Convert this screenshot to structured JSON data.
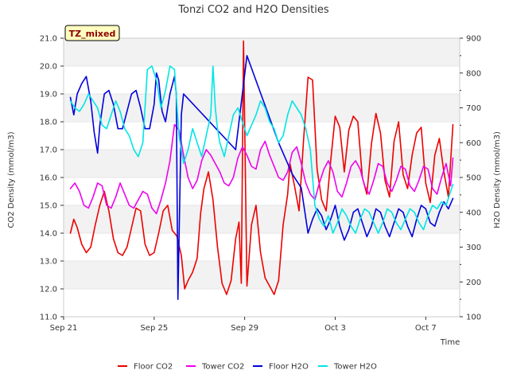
{
  "chart_data": {
    "type": "line",
    "title": "Tonzi CO2 and H2O Densities",
    "site_badge": "TZ_mixed",
    "xlabel": "Time",
    "ylabel_left": "CO2 Density (mmol/m3)",
    "ylabel_right": "H2O Density (mmol/m3)",
    "x_ticks": [
      {
        "day": 0,
        "label": "Sep 21"
      },
      {
        "day": 4,
        "label": "Sep 25"
      },
      {
        "day": 8,
        "label": "Sep 29"
      },
      {
        "day": 12,
        "label": "Oct 3"
      },
      {
        "day": 16,
        "label": "Oct 7"
      }
    ],
    "xlim_days": [
      0,
      17.5
    ],
    "ylim_left": [
      11.0,
      21.0
    ],
    "ylim_right": [
      100,
      900
    ],
    "yticks_left": [
      "11.0",
      "12.0",
      "13.0",
      "14.0",
      "15.0",
      "16.0",
      "17.0",
      "18.0",
      "19.0",
      "20.0",
      "21.0"
    ],
    "yticks_right": [
      "100",
      "200",
      "300",
      "400",
      "500",
      "600",
      "700",
      "800",
      "900"
    ],
    "grid": "horizontal bands",
    "legend_position": "bottom",
    "series": [
      {
        "name": "Floor CO2",
        "color": "#ee0000",
        "axis": "left",
        "x": [
          0.3,
          0.45,
          0.6,
          0.8,
          1.0,
          1.2,
          1.4,
          1.6,
          1.8,
          2.0,
          2.2,
          2.4,
          2.6,
          2.8,
          3.0,
          3.2,
          3.4,
          3.6,
          3.8,
          4.0,
          4.2,
          4.4,
          4.6,
          4.8,
          5.0,
          5.2,
          5.35,
          5.5,
          5.7,
          5.9,
          6.05,
          6.2,
          6.4,
          6.6,
          6.8,
          7.0,
          7.2,
          7.4,
          7.6,
          7.75,
          7.85,
          7.95,
          8.1,
          8.3,
          8.5,
          8.7,
          8.9,
          9.1,
          9.3,
          9.5,
          9.7,
          9.9,
          10.0,
          10.2,
          10.4,
          10.6,
          10.8,
          11.0,
          11.2,
          11.4,
          11.6,
          11.8,
          12.0,
          12.2,
          12.4,
          12.6,
          12.8,
          13.0,
          13.2,
          13.4,
          13.6,
          13.8,
          14.0,
          14.2,
          14.4,
          14.6,
          14.8,
          15.0,
          15.2,
          15.4,
          15.6,
          15.8,
          16.0,
          16.2,
          16.4,
          16.6,
          16.8,
          17.0,
          17.2
        ],
        "y": [
          14.0,
          14.5,
          14.2,
          13.6,
          13.3,
          13.5,
          14.3,
          15.0,
          15.5,
          14.8,
          13.8,
          13.3,
          13.2,
          13.5,
          14.2,
          14.9,
          14.8,
          13.6,
          13.2,
          13.3,
          14.0,
          14.8,
          15.0,
          14.1,
          13.9,
          13.2,
          12.0,
          12.3,
          12.6,
          13.1,
          14.7,
          15.6,
          16.2,
          15.2,
          13.5,
          12.2,
          11.8,
          12.3,
          13.8,
          14.4,
          12.2,
          20.9,
          12.1,
          14.3,
          15.0,
          13.3,
          12.4,
          12.1,
          11.8,
          12.3,
          14.3,
          15.4,
          16.5,
          15.7,
          14.8,
          17.3,
          19.6,
          19.5,
          16.3,
          15.2,
          14.8,
          16.6,
          18.2,
          17.8,
          16.2,
          17.7,
          18.2,
          18.0,
          16.0,
          15.4,
          17.2,
          18.3,
          17.6,
          15.9,
          15.3,
          17.3,
          18.0,
          16.1,
          15.6,
          16.8,
          17.6,
          17.8,
          15.8,
          15.1,
          16.8,
          17.4,
          16.2,
          15.3,
          17.9
        ]
      },
      {
        "name": "Tower CO2",
        "color": "#ee00ee",
        "axis": "left",
        "x": [
          0.3,
          0.5,
          0.7,
          0.9,
          1.1,
          1.3,
          1.5,
          1.7,
          1.9,
          2.1,
          2.3,
          2.5,
          2.7,
          2.9,
          3.1,
          3.3,
          3.5,
          3.7,
          3.9,
          4.1,
          4.3,
          4.5,
          4.7,
          4.9,
          5.1,
          5.3,
          5.5,
          5.7,
          5.9,
          6.1,
          6.3,
          6.5,
          6.7,
          6.9,
          7.1,
          7.3,
          7.5,
          7.7,
          7.9,
          8.1,
          8.3,
          8.5,
          8.7,
          8.9,
          9.1,
          9.3,
          9.5,
          9.7,
          9.9,
          10.1,
          10.3,
          10.5,
          10.7,
          10.9,
          11.1,
          11.3,
          11.5,
          11.7,
          11.9,
          12.1,
          12.3,
          12.5,
          12.7,
          12.9,
          13.1,
          13.3,
          13.5,
          13.7,
          13.9,
          14.1,
          14.3,
          14.5,
          14.7,
          14.9,
          15.1,
          15.3,
          15.5,
          15.7,
          15.9,
          16.1,
          16.3,
          16.5,
          16.7,
          16.9,
          17.1,
          17.2
        ],
        "y": [
          15.6,
          15.8,
          15.5,
          15.0,
          14.9,
          15.3,
          15.8,
          15.7,
          15.0,
          14.9,
          15.3,
          15.8,
          15.4,
          15.0,
          14.9,
          15.2,
          15.5,
          15.4,
          14.9,
          14.7,
          15.2,
          15.8,
          16.6,
          17.9,
          17.7,
          16.8,
          16.0,
          15.6,
          15.9,
          16.6,
          17.0,
          16.8,
          16.5,
          16.2,
          15.8,
          15.7,
          16.0,
          16.7,
          17.1,
          16.8,
          16.4,
          16.3,
          17.0,
          17.3,
          16.8,
          16.4,
          16.0,
          15.9,
          16.2,
          16.9,
          17.1,
          16.5,
          15.8,
          15.4,
          15.2,
          15.8,
          16.3,
          16.6,
          16.2,
          15.5,
          15.3,
          15.8,
          16.4,
          16.6,
          16.3,
          15.7,
          15.4,
          15.9,
          16.5,
          16.4,
          15.8,
          15.5,
          15.9,
          16.4,
          16.3,
          15.7,
          15.5,
          15.9,
          16.4,
          16.3,
          15.6,
          15.4,
          16.0,
          16.5,
          15.7,
          16.7
        ]
      },
      {
        "name": "Floor H2O",
        "color": "#0000dd",
        "axis": "right",
        "x": [
          0.3,
          0.45,
          0.6,
          0.8,
          1.0,
          1.2,
          1.35,
          1.5,
          1.6,
          1.8,
          2.0,
          2.2,
          2.4,
          2.6,
          2.8,
          3.0,
          3.2,
          3.4,
          3.6,
          3.8,
          4.0,
          4.1,
          4.2,
          4.35,
          4.5,
          4.7,
          4.9,
          4.98,
          5.05,
          5.2,
          5.3,
          7.6,
          8.1,
          9.5,
          10.1,
          10.5,
          10.8,
          11.0,
          11.2,
          11.4,
          11.6,
          11.8,
          12.0,
          12.2,
          12.4,
          12.6,
          12.8,
          13.0,
          13.2,
          13.4,
          13.6,
          13.8,
          14.0,
          14.2,
          14.4,
          14.6,
          14.8,
          15.0,
          15.2,
          15.4,
          15.6,
          15.8,
          16.0,
          16.2,
          16.4,
          16.6,
          16.8,
          17.0,
          17.2
        ],
        "y": [
          730,
          680,
          740,
          770,
          790,
          720,
          630,
          570,
          650,
          740,
          750,
          710,
          640,
          640,
          690,
          740,
          750,
          700,
          640,
          640,
          710,
          800,
          780,
          690,
          660,
          740,
          790,
          740,
          150,
          680,
          740,
          580,
          850,
          600,
          510,
          470,
          340,
          380,
          410,
          390,
          350,
          380,
          420,
          360,
          320,
          350,
          400,
          410,
          370,
          330,
          360,
          410,
          400,
          360,
          330,
          370,
          410,
          400,
          360,
          330,
          380,
          420,
          410,
          370,
          360,
          400,
          430,
          410,
          440
        ]
      },
      {
        "name": "Tower H2O",
        "color": "#00e5e5",
        "axis": "right",
        "x": [
          0.3,
          0.5,
          0.7,
          0.9,
          1.1,
          1.3,
          1.5,
          1.7,
          1.9,
          2.1,
          2.3,
          2.5,
          2.7,
          2.9,
          3.1,
          3.3,
          3.5,
          3.7,
          3.9,
          4.1,
          4.3,
          4.5,
          4.7,
          4.9,
          5.1,
          5.3,
          5.5,
          5.7,
          5.9,
          6.1,
          6.3,
          6.5,
          6.6,
          6.7,
          6.8,
          6.9,
          7.1,
          7.3,
          7.5,
          7.7,
          7.9,
          8.1,
          8.3,
          8.5,
          8.7,
          8.9,
          9.1,
          9.3,
          9.5,
          9.7,
          9.9,
          10.1,
          10.3,
          10.5,
          10.7,
          10.9,
          11.1,
          11.3,
          11.5,
          11.7,
          11.9,
          12.1,
          12.3,
          12.5,
          12.7,
          12.9,
          13.1,
          13.3,
          13.5,
          13.7,
          13.9,
          14.1,
          14.3,
          14.5,
          14.7,
          14.9,
          15.1,
          15.3,
          15.5,
          15.7,
          15.9,
          16.1,
          16.3,
          16.5,
          16.7,
          16.9,
          17.1,
          17.2
        ],
        "y": [
          720,
          700,
          690,
          710,
          740,
          720,
          700,
          650,
          640,
          680,
          720,
          690,
          640,
          620,
          580,
          560,
          600,
          810,
          820,
          780,
          700,
          750,
          820,
          810,
          620,
          540,
          580,
          640,
          600,
          560,
          620,
          680,
          820,
          700,
          640,
          600,
          560,
          620,
          680,
          700,
          660,
          620,
          650,
          680,
          720,
          700,
          660,
          640,
          600,
          620,
          680,
          720,
          700,
          680,
          640,
          580,
          420,
          380,
          360,
          390,
          340,
          370,
          410,
          390,
          360,
          340,
          380,
          410,
          400,
          370,
          340,
          370,
          410,
          400,
          370,
          350,
          380,
          410,
          400,
          370,
          350,
          390,
          420,
          410,
          430,
          420,
          460,
          480
        ]
      }
    ]
  }
}
